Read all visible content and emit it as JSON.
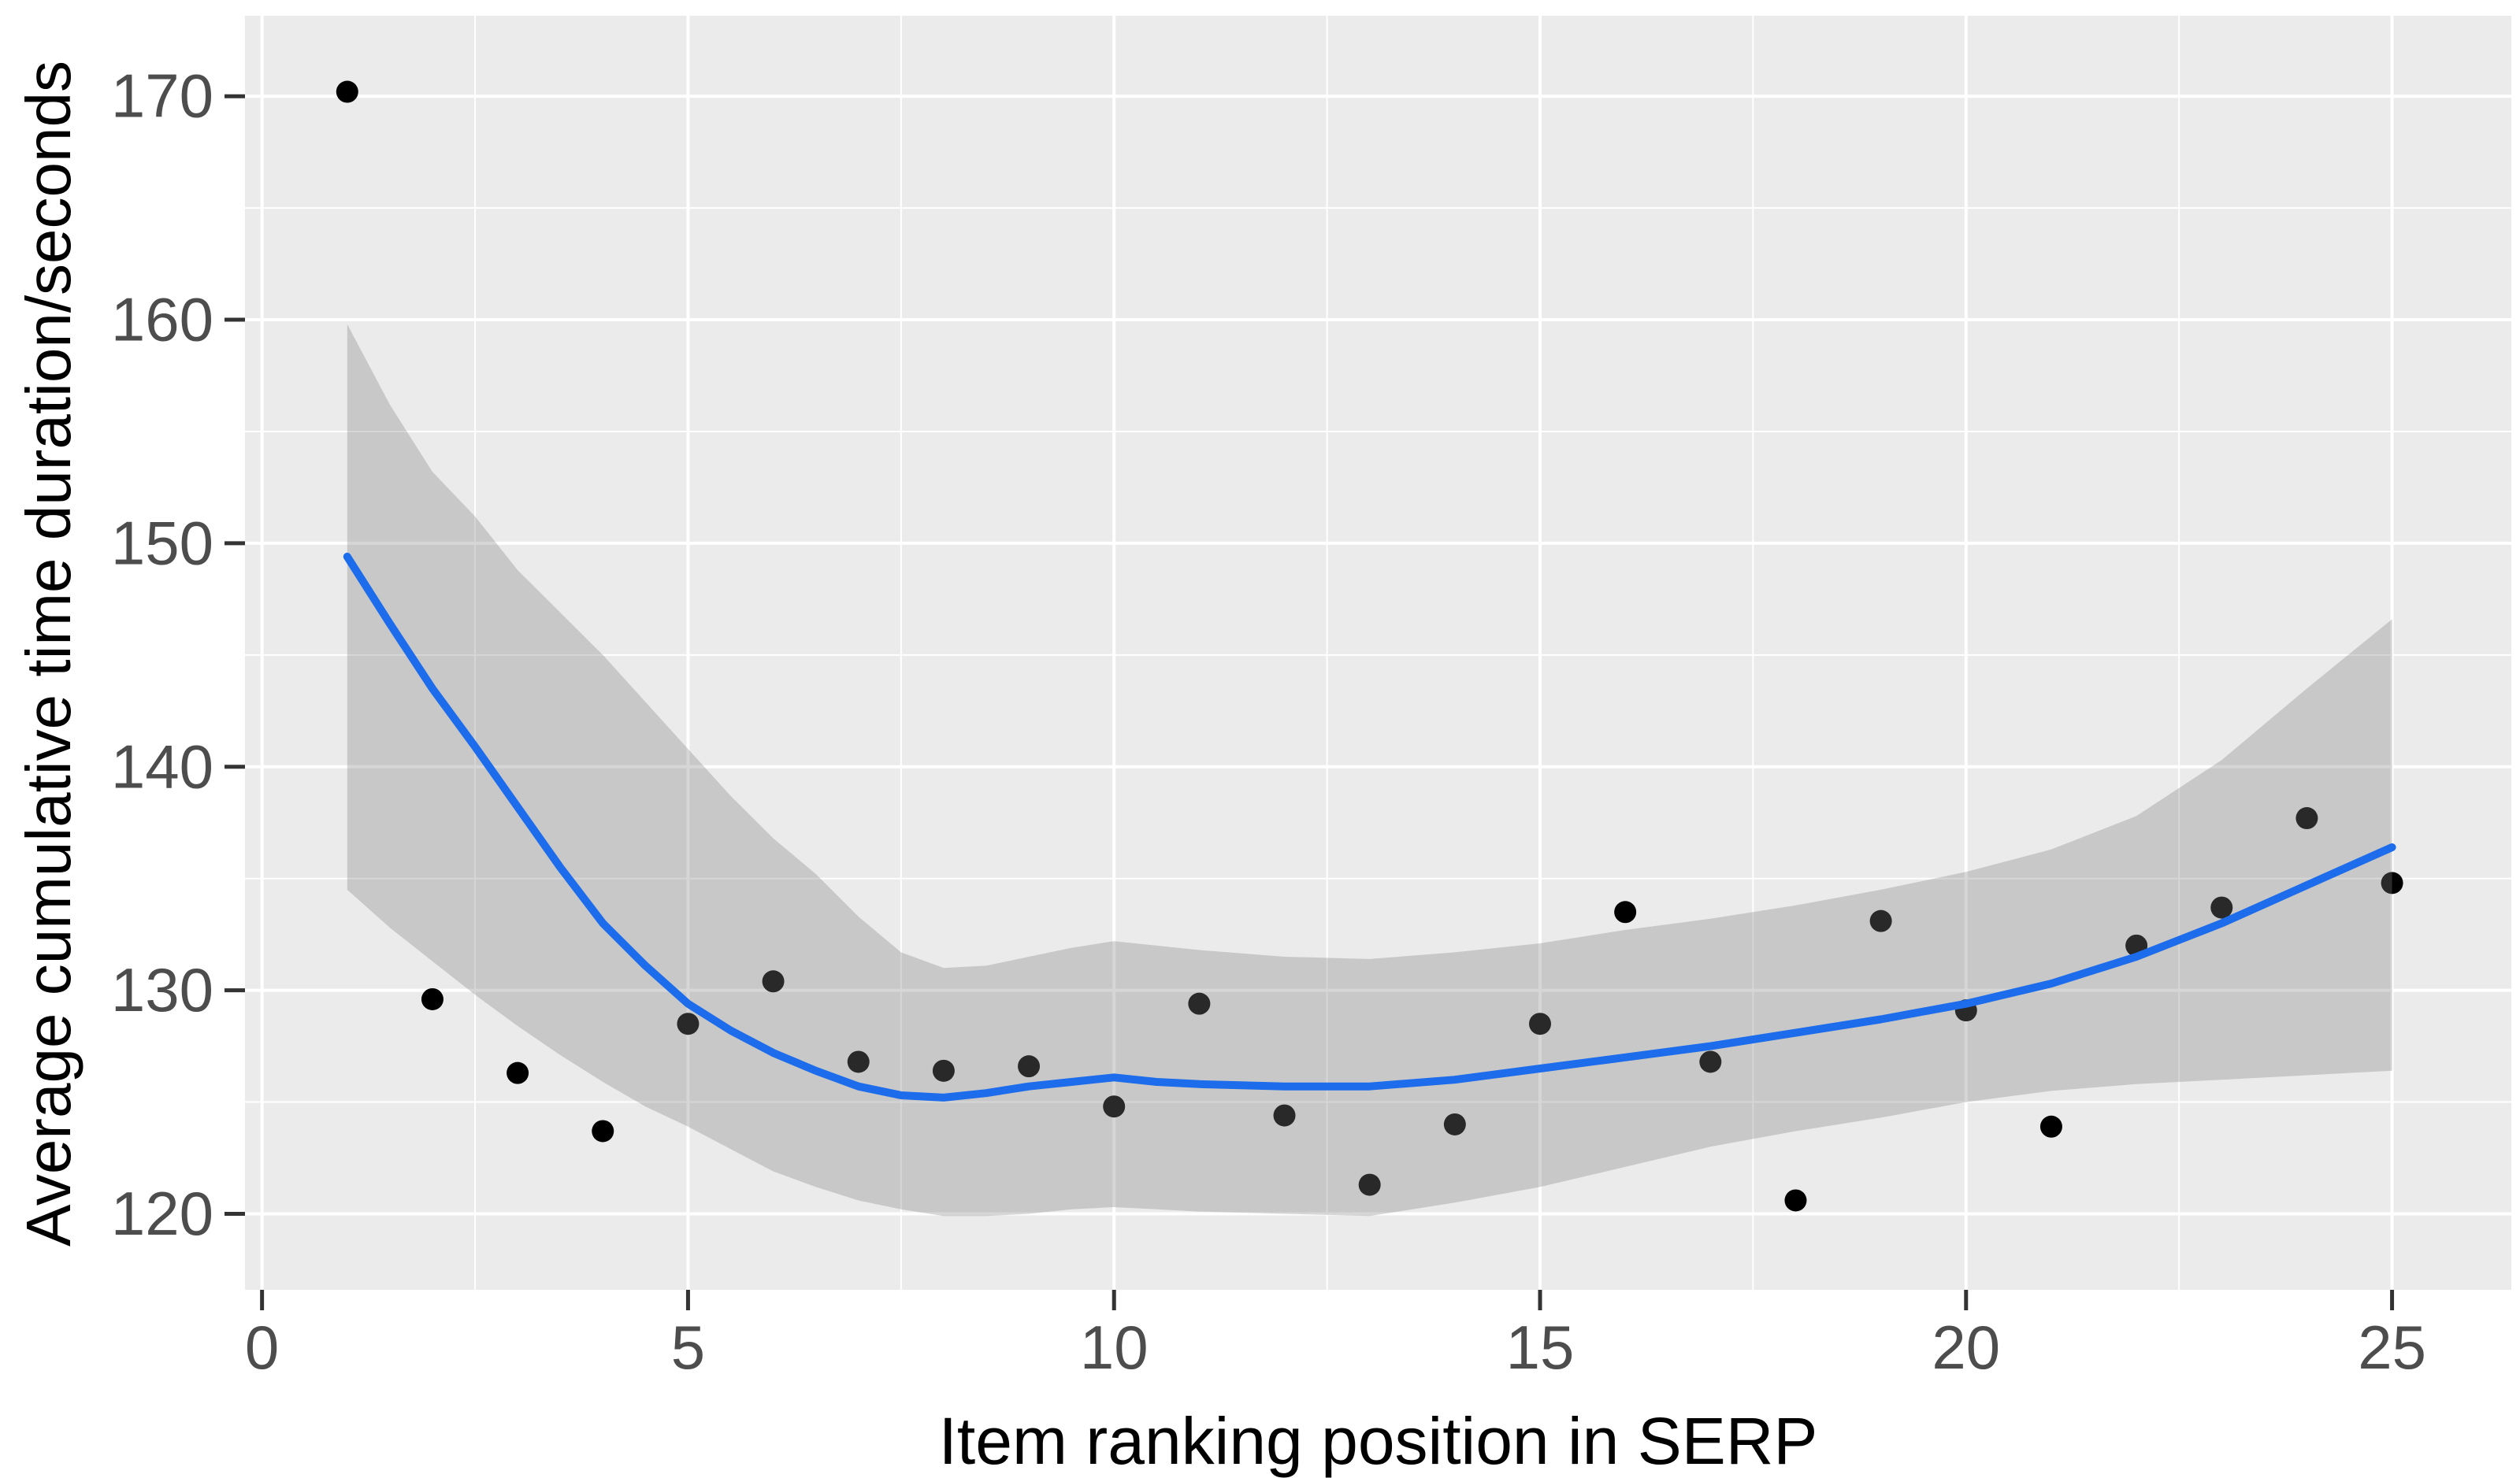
{
  "chart_data": {
    "type": "scatter",
    "title": "",
    "xlabel": "Item ranking position in SERP",
    "ylabel": "Average cumulative time duration/seconds",
    "legend": "none",
    "grid": "on",
    "xlim": [
      -0.2,
      26.4
    ],
    "ylim": [
      116.6,
      173.6
    ],
    "x_ticks": [
      0,
      5,
      10,
      15,
      20,
      25
    ],
    "x_minor_ticks": [
      2.5,
      7.5,
      12.5,
      17.5,
      22.5
    ],
    "y_ticks": [
      120,
      130,
      140,
      150,
      160,
      170
    ],
    "y_minor_ticks": [
      125,
      135,
      145,
      155,
      165
    ],
    "points": {
      "x": [
        1,
        2,
        3,
        4,
        5,
        6,
        7,
        8,
        9,
        10,
        11,
        12,
        13,
        14,
        15,
        16,
        17,
        18,
        19,
        20,
        21,
        22,
        23,
        24,
        25
      ],
      "y": [
        170.2,
        129.6,
        126.3,
        123.7,
        128.5,
        130.4,
        126.8,
        126.4,
        126.6,
        124.8,
        129.4,
        124.4,
        121.3,
        124.0,
        128.5,
        133.5,
        126.8,
        120.6,
        133.1,
        129.1,
        123.9,
        132.0,
        133.7,
        137.7,
        134.8
      ]
    },
    "smooth_line": {
      "x": [
        1,
        1.5,
        2,
        2.5,
        3,
        3.5,
        4,
        4.5,
        5,
        5.5,
        6,
        6.5,
        7,
        7.5,
        8,
        8.5,
        9,
        9.5,
        10,
        10.5,
        11,
        12,
        13,
        14,
        15,
        16,
        17,
        18,
        19,
        20,
        21,
        22,
        23,
        24,
        25
      ],
      "y": [
        149.4,
        146.4,
        143.5,
        140.9,
        138.2,
        135.5,
        133.0,
        131.1,
        129.4,
        128.2,
        127.2,
        126.4,
        125.7,
        125.3,
        125.2,
        125.4,
        125.7,
        125.9,
        126.1,
        125.9,
        125.8,
        125.7,
        125.7,
        126.0,
        126.5,
        127.0,
        127.5,
        128.1,
        128.7,
        129.4,
        130.3,
        131.5,
        133.0,
        134.7,
        136.4
      ]
    },
    "confidence_ribbon": {
      "x": [
        1,
        1.5,
        2,
        2.5,
        3,
        3.5,
        4,
        4.5,
        5,
        5.5,
        6,
        6.5,
        7,
        7.5,
        8,
        8.5,
        9,
        9.5,
        10,
        10.5,
        11,
        12,
        13,
        14,
        15,
        16,
        17,
        18,
        19,
        20,
        21,
        22,
        23,
        24,
        25
      ],
      "upper": [
        159.8,
        156.2,
        153.2,
        151.2,
        148.8,
        146.9,
        145.0,
        142.9,
        140.8,
        138.7,
        136.8,
        135.2,
        133.3,
        131.7,
        131.0,
        131.1,
        131.5,
        131.9,
        132.2,
        132.0,
        131.8,
        131.5,
        131.4,
        131.7,
        132.1,
        132.7,
        133.2,
        133.8,
        134.5,
        135.3,
        136.3,
        137.8,
        140.3,
        143.5,
        146.6
      ],
      "lower": [
        134.5,
        132.8,
        131.3,
        129.8,
        128.4,
        127.1,
        125.9,
        124.8,
        123.9,
        122.9,
        121.9,
        121.2,
        120.6,
        120.2,
        119.9,
        119.9,
        120.0,
        120.2,
        120.3,
        120.2,
        120.1,
        120.0,
        119.9,
        120.5,
        121.2,
        122.1,
        123.0,
        123.7,
        124.3,
        125.0,
        125.5,
        125.8,
        126.0,
        126.2,
        126.4
      ]
    },
    "colors": {
      "panel_background": "#EBEBEB",
      "gridline": "#FFFFFF",
      "point": "#000000",
      "smooth_line": "#1C6CEB",
      "ribbon_fill": "#808080",
      "ribbon_opacity": 0.32,
      "tick_mark": "#333333",
      "tick_label": "#4D4D4D",
      "axis_title": "#000000"
    }
  }
}
